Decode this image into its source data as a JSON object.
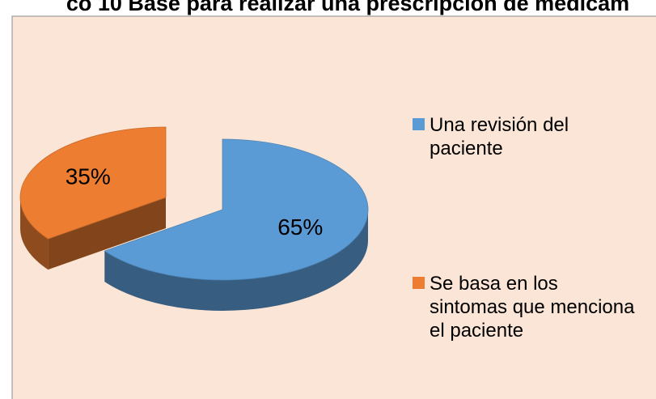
{
  "chart_data": {
    "type": "pie",
    "title": "co 10 Base para realizar una prescripción de medicam",
    "categories": [
      "Una revisión del paciente",
      "Se basa en los sintomas que menciona el paciente"
    ],
    "values": [
      65,
      35
    ],
    "value_labels": [
      "65%",
      "35%"
    ],
    "colors": [
      "#5b9bd5",
      "#ed7d31"
    ],
    "legend": "right"
  }
}
